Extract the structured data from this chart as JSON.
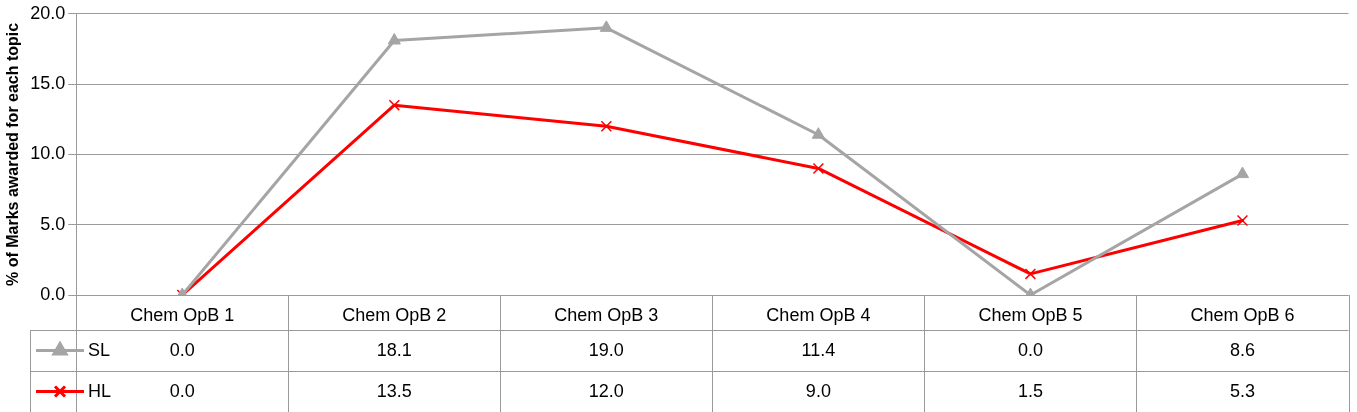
{
  "chart_data": {
    "type": "line",
    "ylabel": "% of Marks awarded for each topic",
    "categories": [
      "Chem OpB 1",
      "Chem OpB 2",
      "Chem OpB 3",
      "Chem OpB 4",
      "Chem OpB 5",
      "Chem OpB 6"
    ],
    "series": [
      {
        "name": "SL",
        "color": "#a5a5a5",
        "marker": "triangle",
        "values": [
          0.0,
          18.1,
          19.0,
          11.4,
          0.0,
          8.6
        ],
        "value_labels": [
          "0.0",
          "18.1",
          "19.0",
          "11.4",
          "0.0",
          "8.6"
        ]
      },
      {
        "name": "HL",
        "color": "#ff0000",
        "marker": "cross",
        "values": [
          0.0,
          13.5,
          12.0,
          9.0,
          1.5,
          5.3
        ],
        "value_labels": [
          "0.0",
          "13.5",
          "12.0",
          "9.0",
          "1.5",
          "5.3"
        ]
      }
    ],
    "ylim": [
      0,
      20
    ],
    "yticks": [
      {
        "value": 0,
        "label": "0.0"
      },
      {
        "value": 5,
        "label": "5.0"
      },
      {
        "value": 10,
        "label": "10.0"
      },
      {
        "value": 15,
        "label": "15.0"
      },
      {
        "value": 20,
        "label": "20.0"
      }
    ],
    "grid": "y",
    "legend": "bottom",
    "line_style": "solid"
  }
}
